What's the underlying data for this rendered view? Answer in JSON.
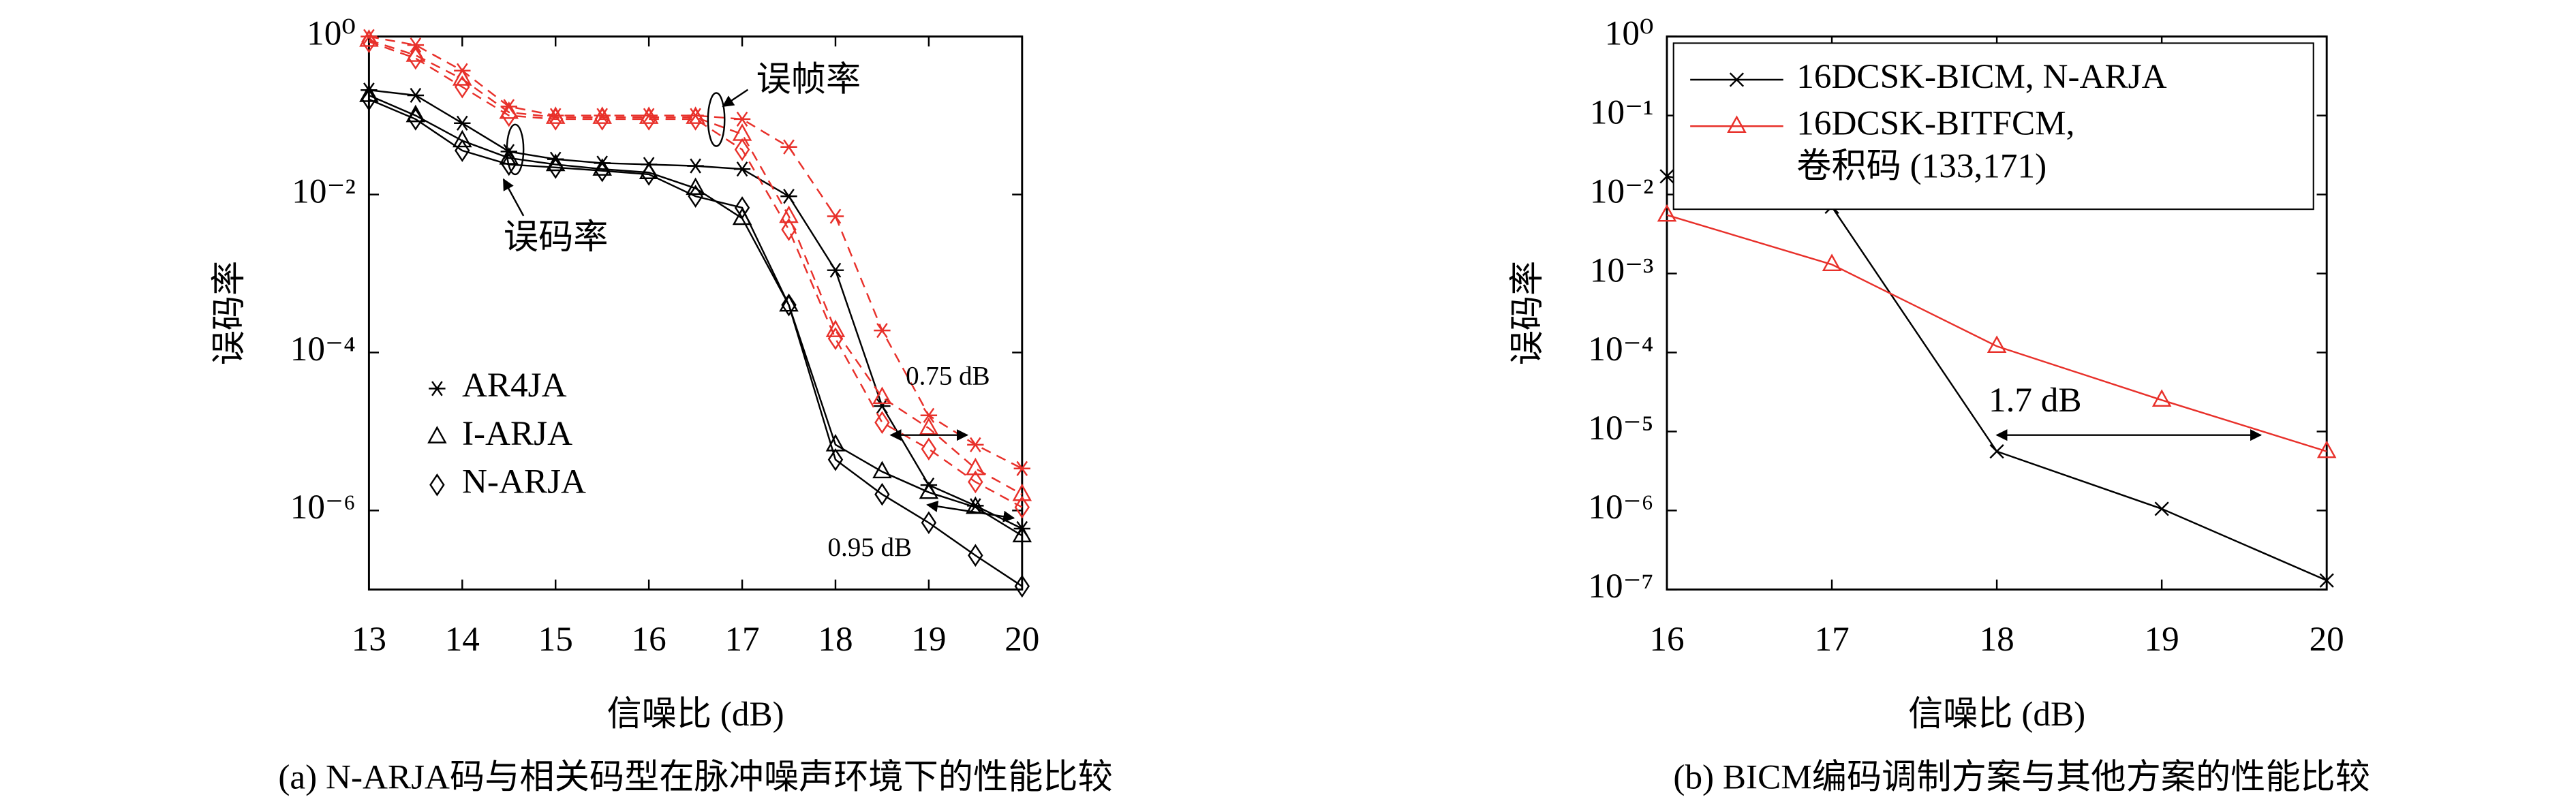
{
  "chart_data": [
    {
      "type": "line",
      "caption": "(a) N-ARJA码与相关码型在脉冲噪声环境下的性能比较",
      "xlabel": "信噪比 (dB)",
      "ylabel": "误码率",
      "log_y": true,
      "xlim": [
        13,
        20
      ],
      "xticks": [
        13,
        14,
        15,
        16,
        17,
        18,
        19,
        20
      ],
      "ylim": [
        1e-07,
        1
      ],
      "yticks": [
        {
          "value": 1,
          "label": "10⁰"
        },
        {
          "value": 0.01,
          "label": "10⁻²"
        },
        {
          "value": 0.0001,
          "label": "10⁻⁴"
        },
        {
          "value": 1e-06,
          "label": "10⁻⁶"
        }
      ],
      "x": [
        13,
        13.5,
        14,
        14.5,
        15,
        15.5,
        16,
        16.5,
        17,
        17.5,
        18,
        18.5,
        19,
        19.5,
        20
      ],
      "colors": {
        "values": "#000000",
        "fer": "#e8302a"
      },
      "dashed": [
        "fer"
      ],
      "series": [
        {
          "name": "AR4JA",
          "marker": "star",
          "values": [
            0.21,
            0.18,
            0.08,
            0.035,
            0.028,
            0.025,
            0.024,
            0.023,
            0.021,
            0.0095,
            0.0011,
            2.1e-05,
            2.1e-06,
            1.15e-06,
            5.9e-07
          ],
          "fer": [
            1,
            0.78,
            0.37,
            0.13,
            0.1,
            0.1,
            0.1,
            0.1,
            0.09,
            0.04,
            0.0053,
            0.00019,
            1.6e-05,
            6.8e-06,
            3.4e-06
          ]
        },
        {
          "name": "I-ARJA",
          "marker": "triangle",
          "values": [
            0.18,
            0.1,
            0.048,
            0.029,
            0.024,
            0.021,
            0.019,
            0.012,
            0.005,
            0.0004,
            6.8e-06,
            3.1e-06,
            1.7e-06,
            1.1e-06,
            4.8e-07
          ],
          "fer": [
            0.9,
            0.58,
            0.29,
            0.11,
            0.095,
            0.095,
            0.095,
            0.095,
            0.058,
            0.0053,
            0.00019,
            2.7e-05,
            1.1e-05,
            3.4e-06,
            1.6e-06
          ]
        },
        {
          "name": "N-ARJA",
          "marker": "diamond",
          "values": [
            0.16,
            0.09,
            0.036,
            0.024,
            0.022,
            0.02,
            0.018,
            0.0095,
            0.0068,
            0.0004,
            4.4e-06,
            1.6e-06,
            7e-07,
            2.7e-07,
            1.1e-07
          ],
          "fer": [
            0.86,
            0.53,
            0.23,
            0.1,
            0.09,
            0.09,
            0.09,
            0.09,
            0.037,
            0.0036,
            0.00015,
            1.3e-05,
            6e-06,
            2.3e-06,
            1.1e-06
          ]
        }
      ],
      "annotations": [
        "误帧率",
        "误码率",
        "0.75 dB",
        "0.95 dB"
      ]
    },
    {
      "type": "line",
      "caption": "(b) BICM编码调制方案与其他方案的性能比较",
      "xlabel": "信噪比 (dB)",
      "ylabel": "误码率",
      "log_y": true,
      "xlim": [
        16,
        20
      ],
      "xticks": [
        16,
        17,
        18,
        19,
        20
      ],
      "ylim": [
        1e-07,
        1
      ],
      "yticks": [
        {
          "value": 1,
          "label": "10⁰"
        },
        {
          "value": 0.1,
          "label": "10⁻¹"
        },
        {
          "value": 0.01,
          "label": "10⁻²"
        },
        {
          "value": 0.001,
          "label": "10⁻³"
        },
        {
          "value": 0.0001,
          "label": "10⁻⁴"
        },
        {
          "value": 1e-05,
          "label": "10⁻⁵"
        },
        {
          "value": 1e-06,
          "label": "10⁻⁶"
        },
        {
          "value": 1e-07,
          "label": "10⁻⁷"
        }
      ],
      "x": [
        16,
        17,
        18,
        19,
        20
      ],
      "series": [
        {
          "name": "16DCSK-BICM, N-ARJA",
          "marker": "x",
          "color": "#000000",
          "values": [
            0.017,
            0.007,
            5.6e-06,
            1.05e-06,
            1.3e-07
          ]
        },
        {
          "name": "16DCSK-BITFCM,\n卷积码 (133,171)",
          "marker": "triangle",
          "color": "#e8302a",
          "values": [
            0.0055,
            0.0013,
            0.00012,
            2.5e-05,
            5.6e-06
          ]
        }
      ],
      "annotations": [
        "1.7 dB"
      ]
    }
  ]
}
